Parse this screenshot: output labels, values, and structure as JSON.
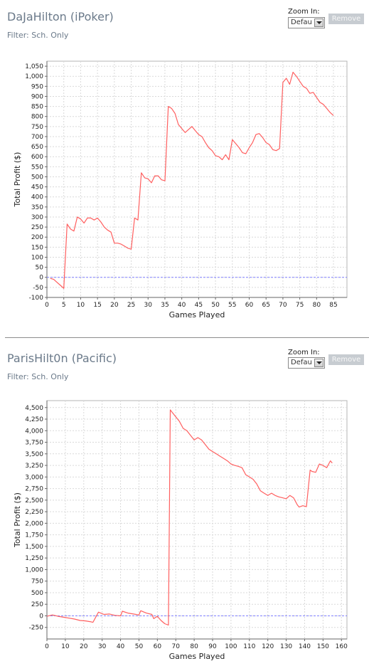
{
  "panels": [
    {
      "title": "DaJaHilton (iPoker)",
      "filter": "Filter: Sch. Only",
      "zoom_label": "Zoom In:",
      "zoom_value": "Defau",
      "remove_label": "Remove"
    },
    {
      "title": "ParisHilt0n (Pacific)",
      "filter": "Filter: Sch. Only",
      "zoom_label": "Zoom In:",
      "zoom_value": "Defau",
      "remove_label": "Remove"
    }
  ],
  "colors": {
    "line": "#ff5f5f",
    "zero_line": "#8080ff",
    "grid": "#d9d9d9",
    "axis": "#666666"
  },
  "chart_data": [
    {
      "type": "line",
      "xlabel": "Games Played",
      "ylabel": "Total Profit ($)",
      "xlim": [
        0,
        89
      ],
      "ylim": [
        -100,
        1075
      ],
      "x_ticks": [
        0,
        5,
        10,
        15,
        20,
        25,
        30,
        35,
        40,
        45,
        50,
        55,
        60,
        65,
        70,
        75,
        80,
        85
      ],
      "y_ticks": [
        -100,
        -50,
        0,
        50,
        100,
        150,
        200,
        250,
        300,
        350,
        400,
        450,
        500,
        550,
        600,
        650,
        700,
        750,
        800,
        850,
        900,
        950,
        1000,
        1050
      ],
      "grid": true,
      "zero_line": 0,
      "series": [
        {
          "x": [
            1,
            2,
            3,
            4,
            5,
            6,
            7,
            8,
            9,
            10,
            11,
            12,
            13,
            14,
            15,
            16,
            17,
            18,
            19,
            20,
            21,
            22,
            23,
            24,
            25,
            26,
            27,
            28,
            29,
            30,
            31,
            32,
            33,
            34,
            35,
            36,
            37,
            38,
            39,
            40,
            41,
            42,
            43,
            44,
            45,
            46,
            47,
            48,
            49,
            50,
            51,
            52,
            53,
            54,
            55,
            56,
            57,
            58,
            59,
            60,
            61,
            62,
            63,
            64,
            65,
            66,
            67,
            68,
            69,
            70,
            71,
            72,
            73,
            74,
            75,
            76,
            77,
            78,
            79,
            80,
            81,
            82,
            83,
            84,
            85
          ],
          "y": [
            -5,
            -10,
            -25,
            -40,
            -55,
            265,
            240,
            230,
            300,
            290,
            270,
            295,
            295,
            285,
            295,
            275,
            250,
            235,
            225,
            170,
            170,
            165,
            155,
            145,
            140,
            295,
            285,
            520,
            495,
            490,
            470,
            505,
            505,
            485,
            480,
            850,
            840,
            815,
            760,
            740,
            720,
            735,
            750,
            730,
            710,
            700,
            670,
            645,
            630,
            605,
            600,
            585,
            610,
            585,
            685,
            665,
            645,
            620,
            615,
            645,
            670,
            710,
            715,
            695,
            670,
            660,
            635,
            630,
            640,
            970,
            990,
            960,
            1020,
            1000,
            975,
            950,
            940,
            915,
            920,
            895,
            870,
            860,
            840,
            820,
            805
          ]
        }
      ]
    },
    {
      "type": "line",
      "xlabel": "Games Played",
      "ylabel": "Total Profit ($)",
      "xlim": [
        0,
        163
      ],
      "ylim": [
        -500,
        4650
      ],
      "x_ticks": [
        0,
        10,
        20,
        30,
        40,
        50,
        60,
        70,
        80,
        90,
        100,
        110,
        120,
        130,
        140,
        150,
        160
      ],
      "y_ticks": [
        -250,
        0,
        250,
        500,
        750,
        1000,
        1250,
        1500,
        1750,
        2000,
        2250,
        2500,
        2750,
        3000,
        3250,
        3500,
        3750,
        4000,
        4250,
        4500
      ],
      "y_tick_labels": [
        "-250",
        "0",
        "250",
        "500",
        "750",
        "1,000",
        "1,250",
        "1,500",
        "1,750",
        "2,000",
        "2,250",
        "2,500",
        "2,750",
        "3,000",
        "3,250",
        "3,500",
        "3,750",
        "4,000",
        "4,250",
        "4,500"
      ],
      "grid": true,
      "zero_line": 0,
      "series": [
        {
          "x": [
            0,
            3,
            6,
            9,
            12,
            15,
            18,
            21,
            24,
            25,
            28,
            31,
            34,
            37,
            40,
            41,
            44,
            47,
            50,
            51,
            54,
            57,
            58,
            60,
            62,
            64,
            66,
            67,
            68,
            70,
            72,
            74,
            76,
            78,
            80,
            82,
            84,
            86,
            88,
            90,
            92,
            94,
            96,
            98,
            100,
            102,
            104,
            106,
            108,
            110,
            112,
            114,
            116,
            118,
            120,
            122,
            124,
            126,
            128,
            130,
            132,
            134,
            136,
            137,
            139,
            141,
            143,
            144,
            146,
            148,
            150,
            152,
            154,
            155
          ],
          "y": [
            -10,
            20,
            -10,
            -30,
            -50,
            -70,
            -100,
            -110,
            -130,
            -140,
            80,
            30,
            40,
            10,
            0,
            100,
            60,
            40,
            20,
            110,
            60,
            30,
            -60,
            -10,
            -100,
            -170,
            -200,
            4450,
            4400,
            4300,
            4200,
            4050,
            4000,
            3900,
            3800,
            3850,
            3800,
            3700,
            3600,
            3550,
            3500,
            3450,
            3400,
            3350,
            3280,
            3250,
            3230,
            3200,
            3050,
            3000,
            2950,
            2850,
            2700,
            2650,
            2600,
            2650,
            2600,
            2570,
            2550,
            2530,
            2600,
            2550,
            2400,
            2350,
            2380,
            2360,
            3150,
            3120,
            3100,
            3280,
            3250,
            3200,
            3350,
            3300
          ]
        }
      ]
    }
  ]
}
